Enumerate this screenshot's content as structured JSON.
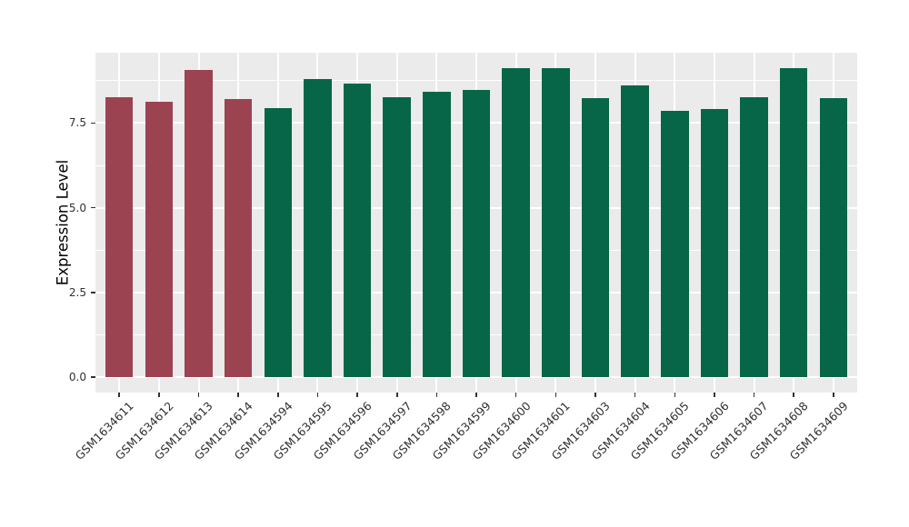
{
  "style": {
    "background": "#FFFFFF",
    "panel_bg": "#EBEBEB",
    "grid_color": "#FFFFFF",
    "tick_label_color": "#303030",
    "axis_title_color": "#000000",
    "tick_mark_color": "#333333"
  },
  "chart_data": {
    "type": "bar",
    "title": "",
    "xlabel": "",
    "ylabel": "Expression Level",
    "categories": [
      "GSM1634611",
      "GSM1634612",
      "GSM1634613",
      "GSM1634614",
      "GSM1634594",
      "GSM1634595",
      "GSM1634596",
      "GSM1634597",
      "GSM1634598",
      "GSM1634599",
      "GSM1634600",
      "GSM1634601",
      "GSM1634603",
      "GSM1634604",
      "GSM1634605",
      "GSM1634606",
      "GSM1634607",
      "GSM1634608",
      "GSM1634609"
    ],
    "values": [
      8.25,
      8.12,
      9.07,
      8.2,
      7.94,
      8.8,
      8.67,
      8.26,
      8.43,
      8.49,
      9.13,
      9.11,
      8.24,
      8.62,
      7.86,
      7.92,
      8.27,
      9.12,
      8.23
    ],
    "bar_colors": [
      "#9C4352",
      "#9C4352",
      "#9C4352",
      "#9C4352",
      "#076648",
      "#076648",
      "#076648",
      "#076648",
      "#076648",
      "#076648",
      "#076648",
      "#076648",
      "#076648",
      "#076648",
      "#076648",
      "#076648",
      "#076648",
      "#076648",
      "#076648"
    ],
    "group_colors": {
      "first_four": "#9C4352",
      "rest": "#076648"
    },
    "yticks": [
      0,
      2.5,
      5.0,
      7.5
    ],
    "ytick_labels": [
      "0.0",
      "2.5",
      "5.0",
      "7.5"
    ],
    "minor_yticks": [
      1.25,
      3.75,
      6.25,
      8.75
    ],
    "ylim": [
      -0.456,
      9.576
    ],
    "x_label_rotation_deg": 45,
    "grid": true,
    "legend": "none"
  }
}
